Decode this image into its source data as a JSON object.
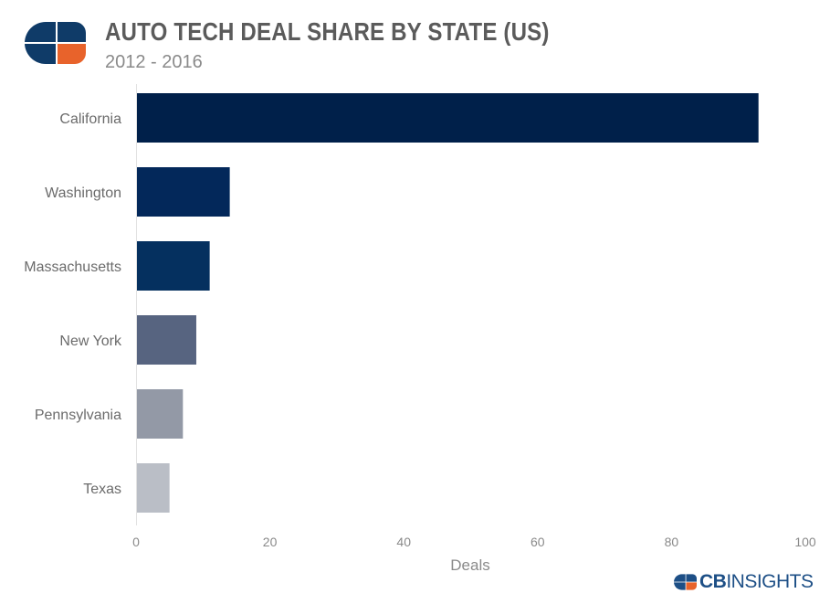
{
  "header": {
    "title": "AUTO TECH DEAL SHARE BY STATE (US)",
    "subtitle": "2012 - 2016"
  },
  "brand": {
    "strong": "CB",
    "light": "INSIGHTS",
    "logo_colors": [
      "#0f3b68",
      "#e8632b"
    ]
  },
  "chart_data": {
    "type": "bar",
    "orientation": "horizontal",
    "categories": [
      "California",
      "Washington",
      "Massachusetts",
      "New York",
      "Pennsylvania",
      "Texas"
    ],
    "values": [
      93,
      14,
      11,
      9,
      7,
      5
    ],
    "colors": [
      "#00204a",
      "#03285a",
      "#05305f",
      "#576480",
      "#9399a6",
      "#babec6"
    ],
    "xlabel": "Deals",
    "ylabel": "",
    "xlim": [
      0,
      100
    ],
    "xticks": [
      0,
      20,
      40,
      60,
      80,
      100
    ],
    "grid": false
  }
}
